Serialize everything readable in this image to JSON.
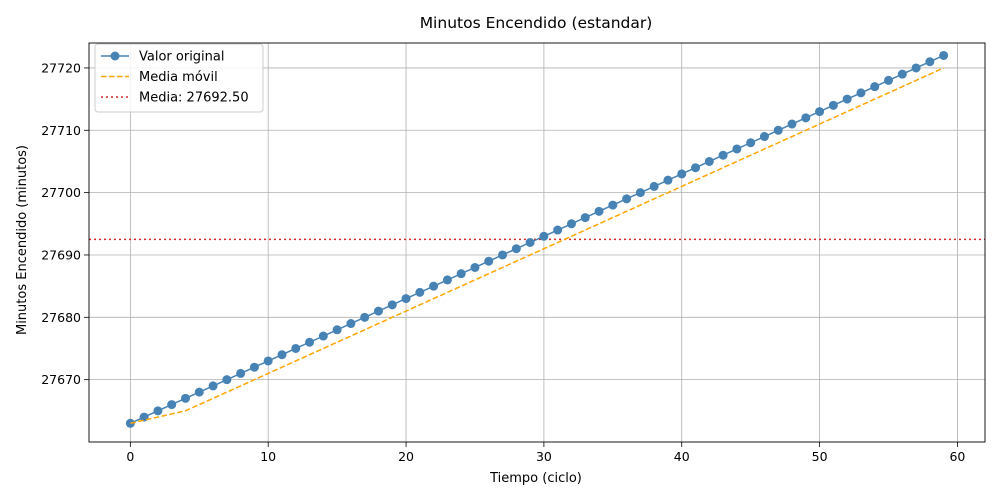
{
  "chart_data": {
    "type": "line",
    "title": "Minutos Encendido (estandar)",
    "xlabel": "Tiempo (ciclo)",
    "ylabel": "Minutos Encendido (minutos)",
    "xlim": [
      -3,
      62
    ],
    "ylim": [
      27660,
      27724
    ],
    "xticks": [
      0,
      10,
      20,
      30,
      40,
      50,
      60
    ],
    "yticks": [
      27670,
      27680,
      27690,
      27700,
      27710,
      27720
    ],
    "grid": true,
    "legend_position": "top-left",
    "x": [
      0,
      1,
      2,
      3,
      4,
      5,
      6,
      7,
      8,
      9,
      10,
      11,
      12,
      13,
      14,
      15,
      16,
      17,
      18,
      19,
      20,
      21,
      22,
      23,
      24,
      25,
      26,
      27,
      28,
      29,
      30,
      31,
      32,
      33,
      34,
      35,
      36,
      37,
      38,
      39,
      40,
      41,
      42,
      43,
      44,
      45,
      46,
      47,
      48,
      49,
      50,
      51,
      52,
      53,
      54,
      55,
      56,
      57,
      58,
      59
    ],
    "series": [
      {
        "name": "Valor original",
        "style": "line-marker",
        "color": "#4682b4",
        "values": [
          27663,
          27664,
          27665,
          27666,
          27667,
          27668,
          27669,
          27670,
          27671,
          27672,
          27673,
          27674,
          27675,
          27676,
          27677,
          27678,
          27679,
          27680,
          27681,
          27682,
          27683,
          27684,
          27685,
          27686,
          27687,
          27688,
          27689,
          27690,
          27691,
          27692,
          27693,
          27694,
          27695,
          27696,
          27697,
          27698,
          27699,
          27700,
          27701,
          27702,
          27703,
          27704,
          27705,
          27706,
          27707,
          27708,
          27709,
          27710,
          27711,
          27712,
          27713,
          27714,
          27715,
          27716,
          27717,
          27718,
          27719,
          27720,
          27721,
          27722
        ]
      },
      {
        "name": "Media móvil",
        "style": "dashed",
        "color": "#ffa500",
        "values": [
          27663,
          27663.5,
          27664,
          27664.5,
          27665,
          27666,
          27667,
          27668,
          27669,
          27670,
          27671,
          27672,
          27673,
          27674,
          27675,
          27676,
          27677,
          27678,
          27679,
          27680,
          27681,
          27682,
          27683,
          27684,
          27685,
          27686,
          27687,
          27688,
          27689,
          27690,
          27691,
          27692,
          27693,
          27694,
          27695,
          27696,
          27697,
          27698,
          27699,
          27700,
          27701,
          27702,
          27703,
          27704,
          27705,
          27706,
          27707,
          27708,
          27709,
          27710,
          27711,
          27712,
          27713,
          27714,
          27715,
          27716,
          27717,
          27718,
          27719,
          27720
        ]
      }
    ],
    "hlines": [
      {
        "name": "Media: 27692.50",
        "value": 27692.5,
        "style": "dotted",
        "color": "#d62728"
      }
    ]
  }
}
